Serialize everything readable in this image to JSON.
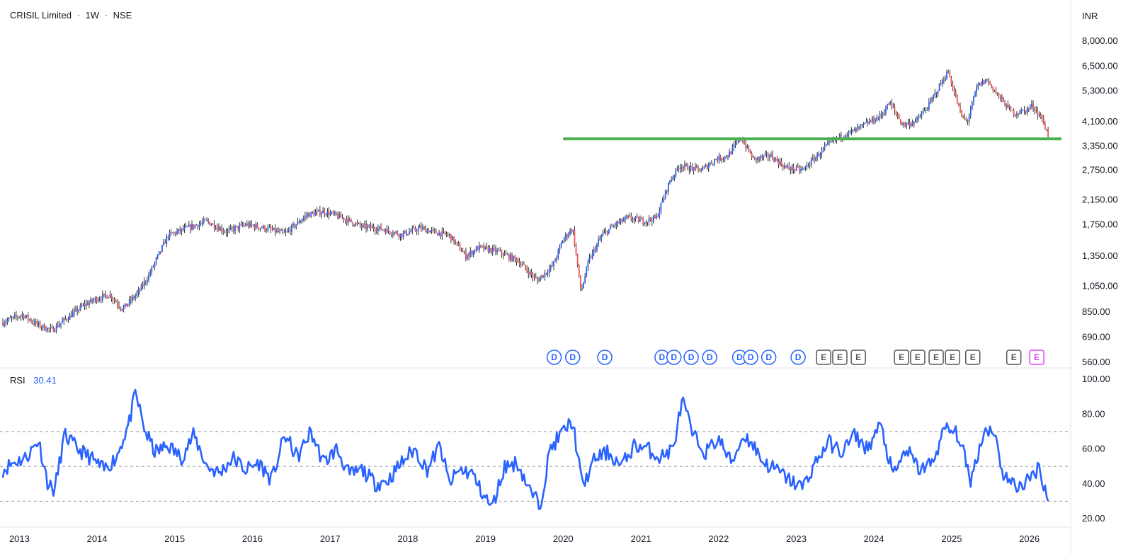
{
  "header": {
    "symbol": "CRISIL Limited",
    "interval": "1W",
    "exchange": "NSE",
    "separator": "·"
  },
  "currency": "INR",
  "price_ticks": [
    "8,000.00",
    "6,500.00",
    "5,300.00",
    "4,100.00",
    "3,350.00",
    "2,750.00",
    "2,150.00",
    "1,750.00",
    "1,350.00",
    "1,050.00",
    "850.00",
    "690.00",
    "560.00"
  ],
  "rsi_ticks": [
    "100.00",
    "80.00",
    "60.00",
    "40.00",
    "20.00"
  ],
  "years": [
    "2013",
    "2014",
    "2015",
    "2016",
    "2017",
    "2018",
    "2019",
    "2020",
    "2021",
    "2022",
    "2023",
    "2024",
    "2025",
    "2026"
  ],
  "colors": {
    "up": "#2962ff",
    "down": "#ef5350",
    "support": "#4caf50",
    "rsi": "#2962ff",
    "earnings_upcoming": "#e040fb",
    "event_outline": "#2962ff",
    "earnings_outline": "#555555"
  },
  "chart_data": [
    {
      "type": "line",
      "title": "CRISIL Limited · 1W · NSE",
      "yscale": "log",
      "ylim": [
        560,
        8000
      ],
      "xlim": [
        "2012-10-15",
        "2026-07-01"
      ],
      "series": [
        {
          "values_x": [
            "2012-10-15",
            "2013-01-15",
            "2013-04-01",
            "2013-06-01",
            "2013-08-15",
            "2013-11-01",
            "2014-01-01",
            "2014-03-01",
            "2014-05-01",
            "2014-07-15",
            "2014-09-01",
            "2014-12-01",
            "2015-03-01",
            "2015-06-01",
            "2015-09-01",
            "2015-12-01",
            "2016-03-01",
            "2016-06-01",
            "2016-09-15",
            "2016-12-01",
            "2017-03-01",
            "2017-06-01",
            "2017-09-01",
            "2017-12-01",
            "2018-03-01",
            "2018-05-01",
            "2018-07-15",
            "2018-10-01",
            "2018-12-01",
            "2019-03-01",
            "2019-06-01",
            "2019-09-01",
            "2019-11-15",
            "2020-01-01",
            "2020-02-15",
            "2020-03-25",
            "2020-05-01",
            "2020-07-01",
            "2020-09-01",
            "2020-11-01",
            "2021-01-15",
            "2021-03-15",
            "2021-05-15",
            "2021-07-01",
            "2021-08-15",
            "2021-10-15",
            "2021-12-15",
            "2022-02-15",
            "2022-04-15",
            "2022-06-15",
            "2022-09-01",
            "2022-11-15",
            "2023-02-01",
            "2023-04-01",
            "2023-06-01",
            "2023-08-01",
            "2023-10-01",
            "2023-12-01",
            "2024-02-01",
            "2024-03-15",
            "2024-05-15",
            "2024-07-15",
            "2024-09-15",
            "2024-11-15",
            "2024-12-15",
            "2025-02-15",
            "2025-03-15",
            "2025-05-01",
            "2025-06-15",
            "2025-08-15",
            "2025-10-15",
            "2025-12-15",
            "2026-01-15",
            "2026-03-01",
            "2026-04-01"
          ],
          "values_y": [
            780,
            830,
            760,
            730,
            810,
            900,
            950,
            980,
            870,
            1000,
            1150,
            1600,
            1700,
            1800,
            1650,
            1750,
            1700,
            1620,
            1900,
            1950,
            1850,
            1720,
            1690,
            1610,
            1700,
            1650,
            1600,
            1350,
            1450,
            1400,
            1300,
            1100,
            1250,
            1550,
            1700,
            1000,
            1300,
            1600,
            1750,
            1850,
            1800,
            1850,
            2500,
            2850,
            2800,
            2750,
            3000,
            3100,
            3600,
            3000,
            3100,
            2800,
            2750,
            3050,
            3400,
            3650,
            3800,
            4050,
            4300,
            4800,
            4000,
            4100,
            4700,
            5700,
            6200,
            4300,
            4100,
            5500,
            5800,
            5000,
            4400,
            4500,
            4700,
            4200,
            3650
          ]
        }
      ],
      "annotations": [
        {
          "label": "support",
          "y": 3560,
          "x_start": "2020-01-01",
          "x_end": "2026-06-01"
        }
      ],
      "events": [
        {
          "type": "D",
          "x": "2019-11-20"
        },
        {
          "type": "D",
          "x": "2020-02-15"
        },
        {
          "type": "D",
          "x": "2020-07-15"
        },
        {
          "type": "D",
          "x": "2021-04-10"
        },
        {
          "type": "D",
          "x": "2021-06-05"
        },
        {
          "type": "D",
          "x": "2021-08-25"
        },
        {
          "type": "D",
          "x": "2021-11-20"
        },
        {
          "type": "D",
          "x": "2022-04-10"
        },
        {
          "type": "D",
          "x": "2022-06-01"
        },
        {
          "type": "D",
          "x": "2022-08-25"
        },
        {
          "type": "D",
          "x": "2023-01-10"
        },
        {
          "type": "E",
          "x": "2023-05-10"
        },
        {
          "type": "E",
          "x": "2023-07-25"
        },
        {
          "type": "E",
          "x": "2023-10-20"
        },
        {
          "type": "E",
          "x": "2024-05-10"
        },
        {
          "type": "E",
          "x": "2024-07-25"
        },
        {
          "type": "E",
          "x": "2024-10-20"
        },
        {
          "type": "E",
          "x": "2025-01-05"
        },
        {
          "type": "E",
          "x": "2025-04-10"
        },
        {
          "type": "E",
          "x": "2025-10-20"
        },
        {
          "type": "E",
          "x": "2026-02-05",
          "upcoming": true
        }
      ]
    },
    {
      "type": "line",
      "title": "RSI",
      "value_label": "30.41",
      "ylim": [
        20,
        100
      ],
      "reference_lines": [
        70,
        50,
        30
      ],
      "series": [
        {
          "name": "RSI",
          "values_x": [
            "2012-10-15",
            "2012-12-01",
            "2013-02-01",
            "2013-04-01",
            "2013-05-15",
            "2013-06-15",
            "2013-08-01",
            "2013-10-01",
            "2013-12-01",
            "2014-02-01",
            "2014-04-01",
            "2014-06-01",
            "2014-07-01",
            "2014-08-15",
            "2014-10-01",
            "2014-12-01",
            "2015-02-01",
            "2015-04-01",
            "2015-06-01",
            "2015-08-01",
            "2015-10-01",
            "2015-12-01",
            "2016-02-01",
            "2016-04-01",
            "2016-06-01",
            "2016-08-01",
            "2016-10-01",
            "2016-12-01",
            "2017-02-01",
            "2017-04-01",
            "2017-06-01",
            "2017-08-01",
            "2017-10-01",
            "2017-12-01",
            "2018-02-01",
            "2018-04-01",
            "2018-06-01",
            "2018-07-15",
            "2018-09-01",
            "2018-11-01",
            "2018-12-01",
            "2019-02-01",
            "2019-04-01",
            "2019-06-01",
            "2019-08-01",
            "2019-09-15",
            "2019-11-01",
            "2020-01-01",
            "2020-02-15",
            "2020-04-01",
            "2020-06-01",
            "2020-08-01",
            "2020-10-01",
            "2020-12-01",
            "2021-02-01",
            "2021-04-01",
            "2021-06-01",
            "2021-07-15",
            "2021-09-01",
            "2021-11-01",
            "2022-01-01",
            "2022-03-01",
            "2022-05-01",
            "2022-06-15",
            "2022-08-01",
            "2022-10-01",
            "2022-12-01",
            "2023-02-01",
            "2023-04-01",
            "2023-06-01",
            "2023-08-01",
            "2023-10-01",
            "2023-12-01",
            "2024-02-01",
            "2024-04-01",
            "2024-06-01",
            "2024-08-01",
            "2024-10-01",
            "2024-12-01",
            "2025-02-01",
            "2025-04-01",
            "2025-06-01",
            "2025-07-15",
            "2025-09-01",
            "2025-11-01",
            "2026-01-01",
            "2026-02-15",
            "2026-04-01"
          ],
          "values_y": [
            48,
            52,
            55,
            65,
            40,
            36,
            68,
            60,
            55,
            48,
            55,
            75,
            92,
            70,
            58,
            62,
            55,
            68,
            50,
            46,
            55,
            48,
            52,
            42,
            68,
            55,
            70,
            52,
            60,
            45,
            48,
            40,
            42,
            52,
            60,
            48,
            62,
            40,
            48,
            46,
            38,
            26,
            50,
            52,
            35,
            28,
            60,
            70,
            76,
            38,
            55,
            58,
            50,
            62,
            60,
            55,
            60,
            88,
            68,
            58,
            66,
            52,
            68,
            62,
            52,
            48,
            42,
            38,
            52,
            64,
            58,
            68,
            60,
            74,
            44,
            60,
            48,
            52,
            72,
            68,
            42,
            70,
            72,
            45,
            38,
            42,
            50,
            30
          ]
        }
      ]
    }
  ]
}
